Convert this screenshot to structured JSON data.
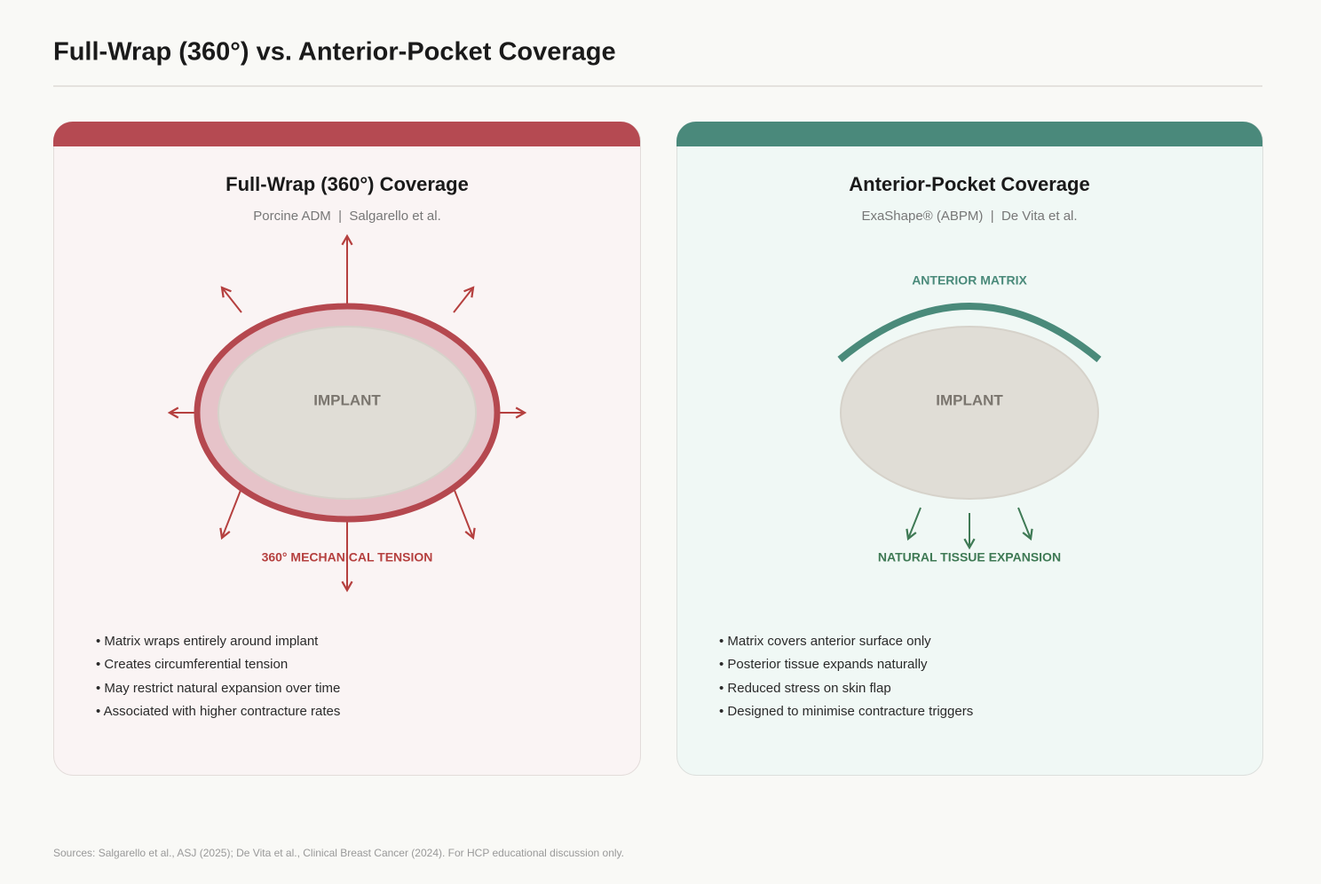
{
  "header": {
    "title": "Full-Wrap (360°) vs. Anterior-Pocket Coverage"
  },
  "panels": [
    {
      "title": "Full-Wrap (360°) Coverage",
      "subtitle": "Porcine ADM  |  Salgarello et al.",
      "implant_label": "IMPLANT",
      "annotations": [
        "360° MECHANICAL TENSION"
      ],
      "bullets": [
        "• Matrix wraps entirely around implant",
        "• Creates circumferential tension",
        "• May restrict natural expansion over time",
        "• Associated with higher contracture rates"
      ]
    },
    {
      "title": "Anterior-Pocket Coverage",
      "subtitle": "ExaShape® (ABPM)  |  De Vita et al.",
      "implant_label": "IMPLANT",
      "annotations": [
        "ANTERIOR MATRIX",
        "NATURAL TISSUE EXPANSION"
      ],
      "bullets": [
        "• Matrix covers anterior surface only",
        "• Posterior tissue expands naturally",
        "• Reduced stress on skin flap",
        "• Designed to minimise contracture triggers"
      ]
    }
  ],
  "footer": {
    "sources": "Sources: Salgarello et al., ASJ (2025); De Vita et al., Clinical Breast Cancer (2024). For HCP educational discussion only."
  }
}
